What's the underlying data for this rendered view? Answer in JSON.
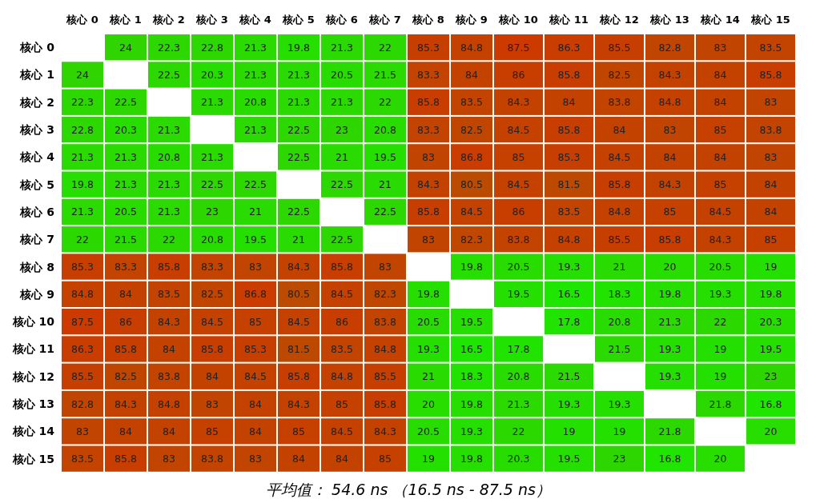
{
  "chart_data": {
    "type": "heatmap",
    "title": "平均值： 54.6 ns （16.5 ns - 87.5 ns）",
    "categories": [
      "核心 0",
      "核心 1",
      "核心 2",
      "核心 3",
      "核心 4",
      "核心 5",
      "核心 6",
      "核心 7",
      "核心 8",
      "核心 9",
      "核心 10",
      "核心 11",
      "核心 12",
      "核心 13",
      "核心 14",
      "核心 15"
    ],
    "y_categories": [
      "核心 0",
      "核心 1",
      "核心 2",
      "核心 3",
      "核心 4",
      "核心 5",
      "核心 6",
      "核心 7",
      "核心 8",
      "核心 9",
      "核心 10",
      "核心 11",
      "核心 12",
      "核心 13",
      "核心 14",
      "核心 15"
    ],
    "data_labels": true,
    "cells": [
      [
        null,
        24,
        22.3,
        22.8,
        21.3,
        19.8,
        21.3,
        22,
        85.3,
        84.8,
        87.5,
        86.3,
        85.5,
        82.8,
        83,
        83.5
      ],
      [
        24,
        null,
        22.5,
        20.3,
        21.3,
        21.3,
        20.5,
        21.5,
        83.3,
        84,
        86,
        85.8,
        82.5,
        84.3,
        84,
        85.8
      ],
      [
        22.3,
        22.5,
        null,
        21.3,
        20.8,
        21.3,
        21.3,
        22,
        85.8,
        83.5,
        84.3,
        84,
        83.8,
        84.8,
        84,
        83
      ],
      [
        22.8,
        20.3,
        21.3,
        null,
        21.3,
        22.5,
        23,
        20.8,
        83.3,
        82.5,
        84.5,
        85.8,
        84,
        83,
        85,
        83.8
      ],
      [
        21.3,
        21.3,
        20.8,
        21.3,
        null,
        22.5,
        21,
        19.5,
        83,
        86.8,
        85,
        85.3,
        84.5,
        84,
        84,
        83
      ],
      [
        19.8,
        21.3,
        21.3,
        22.5,
        22.5,
        null,
        22.5,
        21,
        84.3,
        80.5,
        84.5,
        81.5,
        85.8,
        84.3,
        85,
        84
      ],
      [
        21.3,
        20.5,
        21.3,
        23,
        21,
        22.5,
        null,
        22.5,
        85.8,
        84.5,
        86,
        83.5,
        84.8,
        85,
        84.5,
        84
      ],
      [
        22,
        21.5,
        22,
        20.8,
        19.5,
        21,
        22.5,
        null,
        83,
        82.3,
        83.8,
        84.8,
        85.5,
        85.8,
        84.3,
        85
      ],
      [
        85.3,
        83.3,
        85.8,
        83.3,
        83,
        84.3,
        85.8,
        83,
        null,
        19.8,
        20.5,
        19.3,
        21,
        20,
        20.5,
        19
      ],
      [
        84.8,
        84,
        83.5,
        82.5,
        86.8,
        80.5,
        84.5,
        82.3,
        19.8,
        null,
        19.5,
        16.5,
        18.3,
        19.8,
        19.3,
        19.8
      ],
      [
        87.5,
        86,
        84.3,
        84.5,
        85,
        84.5,
        86,
        83.8,
        20.5,
        19.5,
        null,
        17.8,
        20.8,
        21.3,
        22,
        20.3
      ],
      [
        86.3,
        85.8,
        84,
        85.8,
        85.3,
        81.5,
        83.5,
        84.8,
        19.3,
        16.5,
        17.8,
        null,
        21.5,
        19.3,
        19,
        19.5
      ],
      [
        85.5,
        82.5,
        83.8,
        84,
        84.5,
        85.8,
        84.8,
        85.5,
        21,
        18.3,
        20.8,
        21.5,
        null,
        19.3,
        19,
        23
      ],
      [
        82.8,
        84.3,
        84.8,
        83,
        84,
        84.3,
        85,
        85.8,
        20,
        19.8,
        21.3,
        19.3,
        19.3,
        null,
        21.8,
        16.8
      ],
      [
        83,
        84,
        84,
        85,
        84,
        85,
        84.5,
        84.3,
        20.5,
        19.3,
        22,
        19,
        19,
        21.8,
        null,
        20
      ],
      [
        83.5,
        85.8,
        83,
        83.8,
        83,
        84,
        84,
        85,
        19,
        19.8,
        20.3,
        19.5,
        23,
        16.8,
        20,
        null
      ]
    ]
  }
}
